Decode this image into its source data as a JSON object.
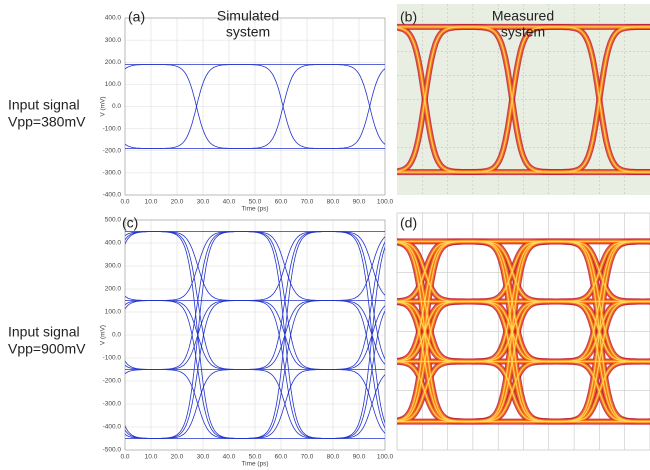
{
  "labels": {
    "row1": [
      "Input signal",
      "Vpp=380mV"
    ],
    "row2": [
      "Input signal",
      "Vpp=900mV"
    ],
    "simulated": [
      "Simulated",
      "system"
    ],
    "measured": [
      "Measured",
      "system"
    ]
  },
  "panels": [
    {
      "tag": "(a)",
      "ylabel": "V (mV)",
      "xlabel": "Time (ps)",
      "ylim": [
        -400,
        400
      ],
      "yticks": [
        {
          "value": -400,
          "label": "-400.0"
        },
        {
          "value": -300,
          "label": "-300.0"
        },
        {
          "value": -200,
          "label": "-200.0"
        },
        {
          "value": -100,
          "label": "-100.0"
        },
        {
          "value": 0,
          "label": "0.0"
        },
        {
          "value": 100,
          "label": "100.0"
        },
        {
          "value": 200,
          "label": "200.0"
        },
        {
          "value": 300,
          "label": "300.0"
        },
        {
          "value": 400,
          "label": "400.0"
        }
      ],
      "xlim": [
        0,
        100
      ],
      "xticks": [
        {
          "value": 0,
          "label": "0.0"
        },
        {
          "value": 10,
          "label": "10.0"
        },
        {
          "value": 20,
          "label": "20.0"
        },
        {
          "value": 30,
          "label": "30.0"
        },
        {
          "value": 40,
          "label": "40.0"
        },
        {
          "value": 50,
          "label": "50.0"
        },
        {
          "value": 60,
          "label": "60.0"
        },
        {
          "value": 70,
          "label": "70.0"
        },
        {
          "value": 80,
          "label": "80.0"
        },
        {
          "value": 90,
          "label": "90.0"
        },
        {
          "value": 100,
          "label": "100.0"
        }
      ],
      "eye_levels": [
        -190,
        190
      ],
      "crossings": [
        -5.8,
        27.5,
        60.8,
        94.1
      ]
    },
    {
      "tag": "(b)"
    },
    {
      "tag": "(c)",
      "ylabel": "V (mV)",
      "xlabel": "Time (ps)",
      "ylim": [
        -500,
        500
      ],
      "yticks": [
        {
          "value": -500,
          "label": "-500.0"
        },
        {
          "value": -400,
          "label": "-400.0"
        },
        {
          "value": -300,
          "label": "-300.0"
        },
        {
          "value": -200,
          "label": "-200.0"
        },
        {
          "value": -100,
          "label": "-100.0"
        },
        {
          "value": 0,
          "label": "0.0"
        },
        {
          "value": 100,
          "label": "100.0"
        },
        {
          "value": 200,
          "label": "200.0"
        },
        {
          "value": 300,
          "label": "300.0"
        },
        {
          "value": 400,
          "label": "400.0"
        },
        {
          "value": 500,
          "label": "500.0"
        }
      ],
      "xlim": [
        0,
        100
      ],
      "xticks": [
        {
          "value": 0,
          "label": "0.0"
        },
        {
          "value": 10,
          "label": "10.0"
        },
        {
          "value": 20,
          "label": "20.0"
        },
        {
          "value": 30,
          "label": "30.0"
        },
        {
          "value": 40,
          "label": "40.0"
        },
        {
          "value": 50,
          "label": "50.0"
        },
        {
          "value": 60,
          "label": "60.0"
        },
        {
          "value": 70,
          "label": "70.0"
        },
        {
          "value": 80,
          "label": "80.0"
        },
        {
          "value": 90,
          "label": "90.0"
        },
        {
          "value": 100,
          "label": "100.0"
        }
      ],
      "eye_levels": [
        -450,
        -150,
        150,
        450
      ],
      "crossings": [
        -5.5,
        28,
        61.5,
        95
      ]
    },
    {
      "tag": "(d)"
    }
  ]
}
